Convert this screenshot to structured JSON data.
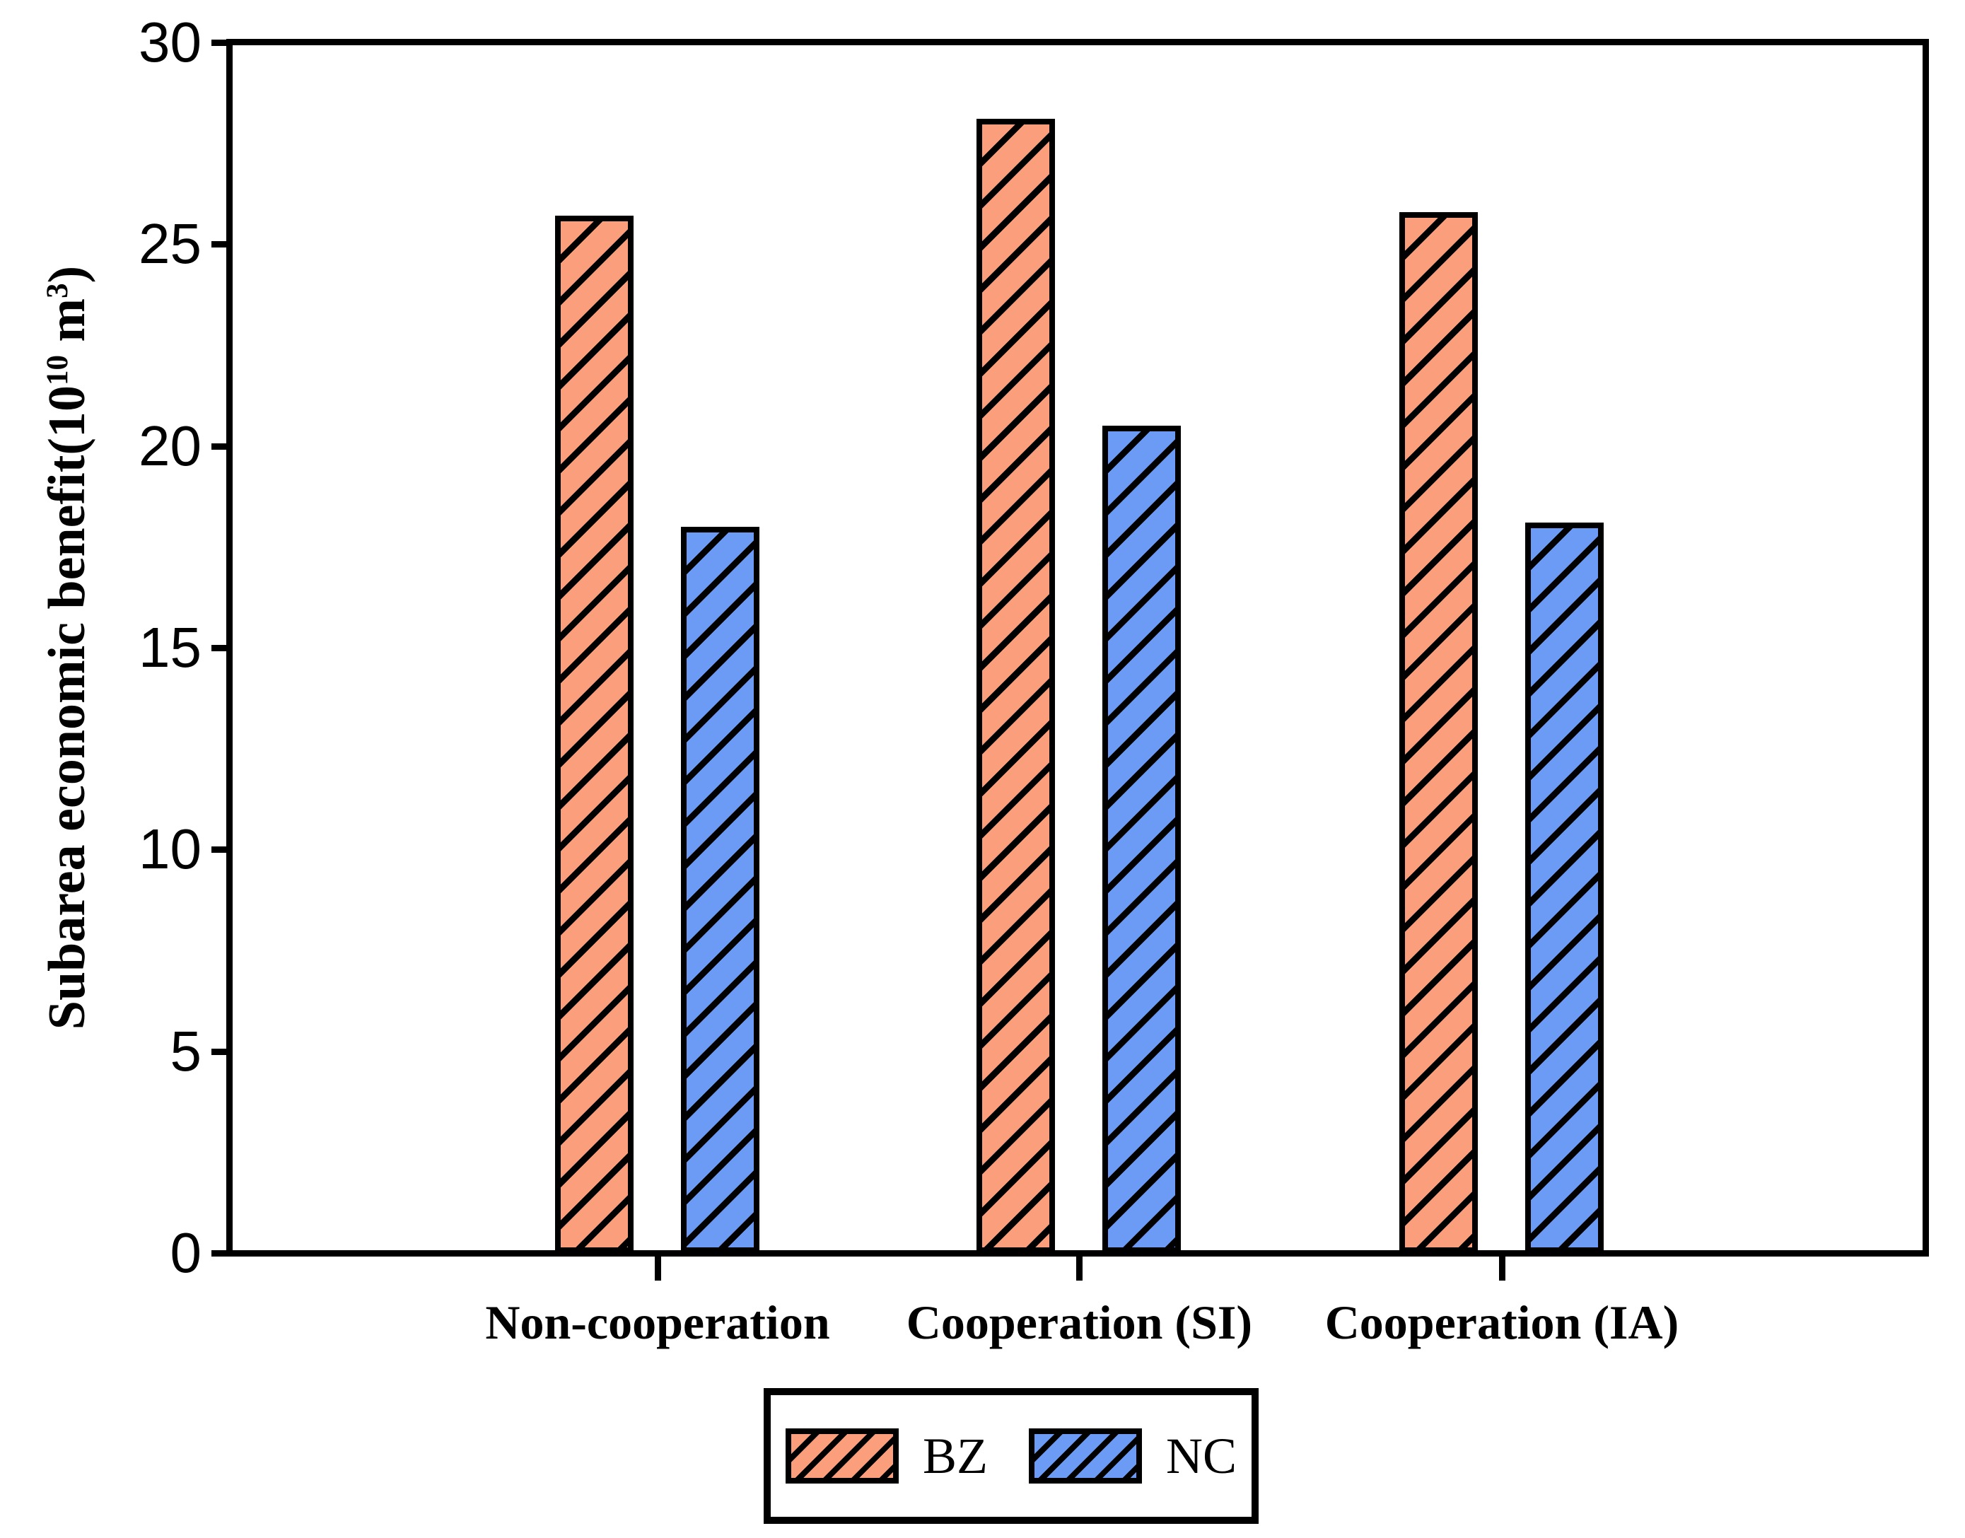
{
  "figure": {
    "background_color": "#ffffff",
    "axis_color": "#000000"
  },
  "chart_data": {
    "type": "bar",
    "title": "",
    "xlabel": "",
    "ylabel": "Subarea economic benefit(10^10 m^3)",
    "ylabel_parts": {
      "prefix": "Subarea economic benefit(10",
      "sup1": "10",
      "mid": " m",
      "sup2": "3",
      "suffix": ")"
    },
    "categories": [
      "Non-cooperation",
      "Cooperation (SI)",
      "Cooperation (IA)"
    ],
    "series": [
      {
        "name": "BZ",
        "fill_color": "#FA9E7C",
        "hatch": "/",
        "values": [
          25.7,
          28.1,
          25.8
        ]
      },
      {
        "name": "NC",
        "fill_color": "#6B9BF5",
        "hatch": "/",
        "values": [
          18.0,
          20.5,
          18.1
        ]
      }
    ],
    "ylim": [
      0,
      30
    ],
    "yticks": [
      0,
      5,
      10,
      15,
      20,
      25,
      30
    ],
    "grid": false,
    "frame": "full-box",
    "legend_position": "bottom-center",
    "legend_labels": [
      "BZ",
      "NC"
    ]
  }
}
